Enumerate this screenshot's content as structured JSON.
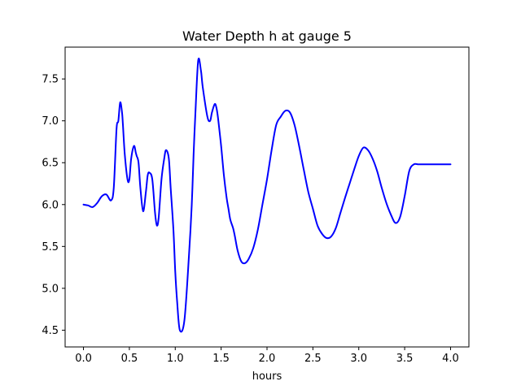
{
  "chart_data": {
    "type": "line",
    "title": "Water Depth h at gauge 5",
    "xlabel": "hours",
    "ylabel": "",
    "xlim": [
      -0.2,
      4.2
    ],
    "ylim": [
      4.3,
      7.88
    ],
    "xticks": [
      0.0,
      0.5,
      1.0,
      1.5,
      2.0,
      2.5,
      3.0,
      3.5,
      4.0
    ],
    "xtick_labels": [
      "0.0",
      "0.5",
      "1.0",
      "1.5",
      "2.0",
      "2.5",
      "3.0",
      "3.5",
      "4.0"
    ],
    "yticks": [
      4.5,
      5.0,
      5.5,
      6.0,
      6.5,
      7.0,
      7.5
    ],
    "ytick_labels": [
      "4.5",
      "5.0",
      "5.5",
      "6.0",
      "6.5",
      "7.0",
      "7.5"
    ],
    "grid": false,
    "legend": false,
    "series": [
      {
        "color": "#0000ff",
        "x": [
          0.0,
          0.05,
          0.1,
          0.15,
          0.2,
          0.25,
          0.3,
          0.33,
          0.36,
          0.38,
          0.4,
          0.42,
          0.43,
          0.45,
          0.48,
          0.5,
          0.52,
          0.55,
          0.57,
          0.58,
          0.6,
          0.62,
          0.65,
          0.68,
          0.7,
          0.72,
          0.75,
          0.78,
          0.8,
          0.82,
          0.85,
          0.88,
          0.9,
          0.93,
          0.95,
          0.98,
          1.0,
          1.02,
          1.05,
          1.1,
          1.15,
          1.18,
          1.2,
          1.22,
          1.25,
          1.28,
          1.3,
          1.35,
          1.38,
          1.4,
          1.43,
          1.45,
          1.47,
          1.5,
          1.53,
          1.56,
          1.58,
          1.6,
          1.63,
          1.65,
          1.68,
          1.72,
          1.76,
          1.8,
          1.85,
          1.9,
          1.95,
          2.0,
          2.05,
          2.1,
          2.15,
          2.2,
          2.25,
          2.3,
          2.35,
          2.4,
          2.45,
          2.5,
          2.55,
          2.6,
          2.65,
          2.7,
          2.75,
          2.8,
          2.85,
          2.9,
          2.95,
          3.0,
          3.05,
          3.1,
          3.15,
          3.2,
          3.25,
          3.3,
          3.35,
          3.4,
          3.45,
          3.5,
          3.55,
          3.6,
          3.65,
          3.7,
          3.75,
          3.8,
          3.85,
          3.9,
          3.95,
          4.0
        ],
        "y": [
          6.0,
          5.99,
          5.97,
          6.02,
          6.1,
          6.12,
          6.05,
          6.2,
          6.9,
          7.0,
          7.22,
          7.1,
          6.95,
          6.6,
          6.3,
          6.3,
          6.55,
          6.7,
          6.62,
          6.58,
          6.5,
          6.2,
          5.92,
          6.15,
          6.35,
          6.38,
          6.3,
          5.9,
          5.75,
          5.85,
          6.3,
          6.55,
          6.65,
          6.55,
          6.2,
          5.7,
          5.2,
          4.85,
          4.5,
          4.62,
          5.4,
          6.0,
          6.6,
          7.1,
          7.72,
          7.6,
          7.4,
          7.05,
          7.0,
          7.1,
          7.2,
          7.15,
          7.0,
          6.7,
          6.35,
          6.08,
          5.95,
          5.82,
          5.72,
          5.62,
          5.45,
          5.32,
          5.3,
          5.35,
          5.48,
          5.7,
          6.0,
          6.3,
          6.65,
          6.95,
          7.05,
          7.12,
          7.1,
          6.95,
          6.7,
          6.42,
          6.15,
          5.95,
          5.75,
          5.65,
          5.6,
          5.62,
          5.72,
          5.9,
          6.08,
          6.25,
          6.42,
          6.58,
          6.68,
          6.65,
          6.55,
          6.4,
          6.2,
          6.02,
          5.88,
          5.78,
          5.85,
          6.1,
          6.4,
          6.48,
          6.48,
          6.48,
          6.48,
          6.48,
          6.48,
          6.48,
          6.48,
          6.48
        ]
      }
    ]
  }
}
